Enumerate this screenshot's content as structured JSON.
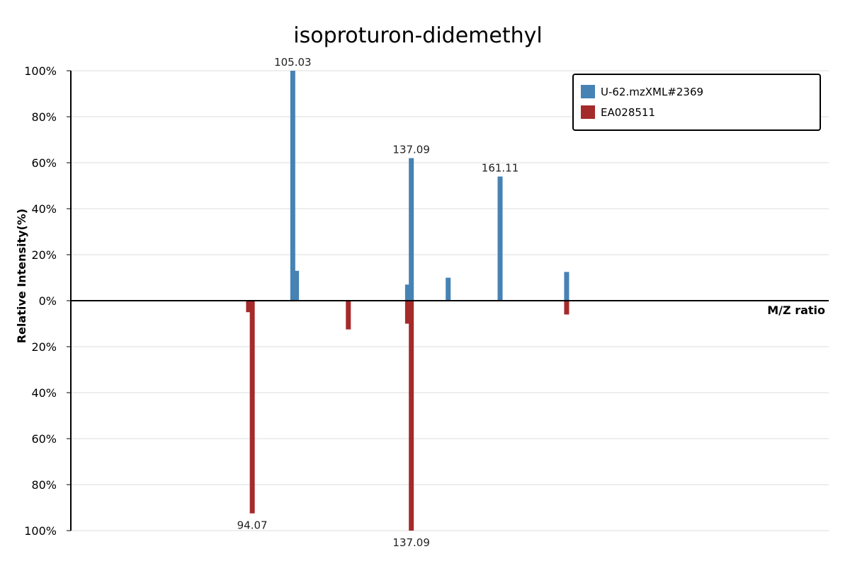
{
  "chart_data": {
    "type": "bar",
    "title": "isoproturon-didemethyl",
    "xlabel": "M/Z ratio",
    "ylabel": "Relative Intensity(%)",
    "ylim": [
      -100,
      100
    ],
    "y_ticks": [
      {
        "value": 100,
        "label": "100%"
      },
      {
        "value": 80,
        "label": "80%"
      },
      {
        "value": 60,
        "label": "60%"
      },
      {
        "value": 40,
        "label": "40%"
      },
      {
        "value": 20,
        "label": "20%"
      },
      {
        "value": 0,
        "label": "0%"
      },
      {
        "value": -20,
        "label": "20%"
      },
      {
        "value": -40,
        "label": "40%"
      },
      {
        "value": -60,
        "label": "60%"
      },
      {
        "value": -80,
        "label": "80%"
      },
      {
        "value": -100,
        "label": "100%"
      }
    ],
    "grid": true,
    "legend_position": "top-right",
    "series": [
      {
        "name": "U-62.mzXML#2369",
        "color": "#4682b4",
        "direction": "up",
        "peaks": [
          {
            "mz": 105.03,
            "intensity": 100,
            "label": "105.03"
          },
          {
            "mz": 106.04,
            "intensity": 13,
            "label": ""
          },
          {
            "mz": 136.08,
            "intensity": 7,
            "label": ""
          },
          {
            "mz": 137.09,
            "intensity": 62,
            "label": "137.09"
          },
          {
            "mz": 147.06,
            "intensity": 10,
            "label": ""
          },
          {
            "mz": 161.11,
            "intensity": 54,
            "label": "161.11"
          },
          {
            "mz": 179.1,
            "intensity": 12.5,
            "label": ""
          }
        ]
      },
      {
        "name": "EA028511",
        "color": "#a52a2a",
        "direction": "down",
        "peaks": [
          {
            "mz": 93.07,
            "intensity": 5,
            "label": ""
          },
          {
            "mz": 94.07,
            "intensity": 92.5,
            "label": "94.07"
          },
          {
            "mz": 120.06,
            "intensity": 12.5,
            "label": ""
          },
          {
            "mz": 136.08,
            "intensity": 10,
            "label": ""
          },
          {
            "mz": 137.09,
            "intensity": 100,
            "label": "137.09"
          },
          {
            "mz": 179.1,
            "intensity": 6,
            "label": ""
          }
        ]
      }
    ]
  }
}
